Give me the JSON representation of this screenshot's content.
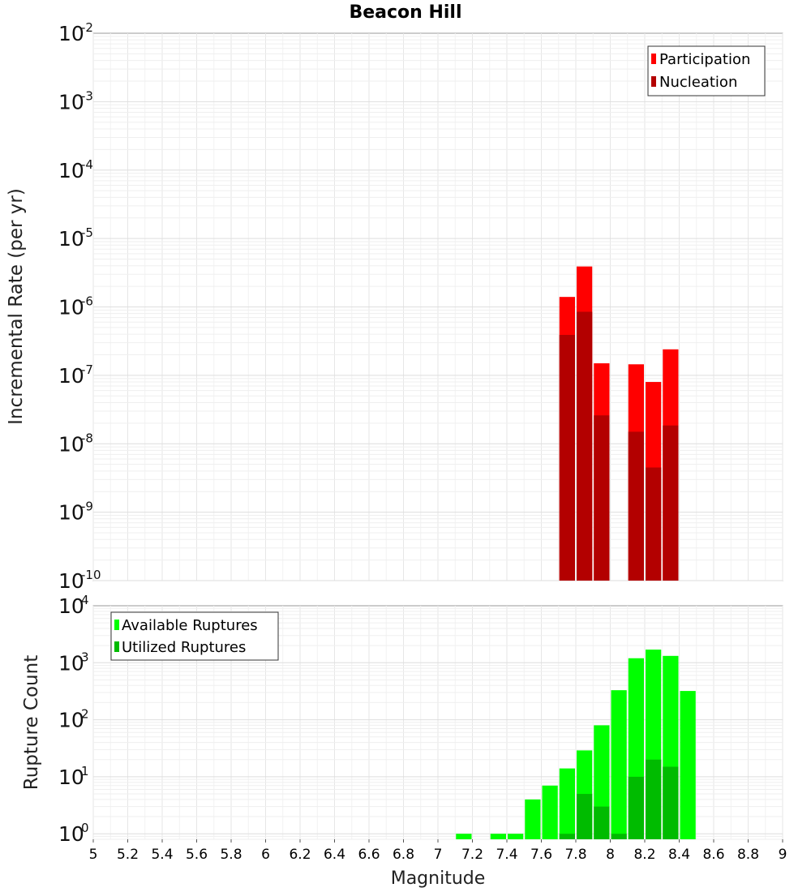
{
  "chart_data": [
    {
      "type": "bar",
      "title": "Beacon Hill",
      "xlabel": "",
      "ylabel": "Incremental Rate (per yr)",
      "y_scale": "log",
      "ylim": [
        1e-10,
        0.01
      ],
      "xlim": [
        5,
        9
      ],
      "bar_width": 0.1,
      "y_ticks": [
        {
          "base": "10",
          "exp": "-10",
          "value": 1e-10
        },
        {
          "base": "10",
          "exp": "-9",
          "value": 1e-09
        },
        {
          "base": "10",
          "exp": "-8",
          "value": 1e-08
        },
        {
          "base": "10",
          "exp": "-7",
          "value": 1e-07
        },
        {
          "base": "10",
          "exp": "-6",
          "value": 1e-06
        },
        {
          "base": "10",
          "exp": "-5",
          "value": 1e-05
        },
        {
          "base": "10",
          "exp": "-4",
          "value": 0.0001
        },
        {
          "base": "10",
          "exp": "-3",
          "value": 0.001
        },
        {
          "base": "10",
          "exp": "-2",
          "value": 0.01
        }
      ],
      "grid": true,
      "legend_position": "top-right",
      "series": [
        {
          "name": "Participation",
          "color": "#ff0000",
          "x": [
            7.75,
            7.85,
            7.95,
            8.15,
            8.25,
            8.35
          ],
          "values": [
            1.4e-06,
            3.9e-06,
            1.5e-07,
            1.45e-07,
            8e-08,
            2.4e-07
          ]
        },
        {
          "name": "Nucleation",
          "color": "#b30000",
          "x": [
            7.75,
            7.85,
            7.95,
            8.15,
            8.25,
            8.35
          ],
          "values": [
            3.9e-07,
            8.5e-07,
            2.6e-08,
            1.5e-08,
            4.5e-09,
            1.85e-08
          ]
        }
      ]
    },
    {
      "type": "bar",
      "title": "",
      "xlabel": "Magnitude",
      "ylabel": "Rupture Count",
      "y_scale": "log",
      "ylim": [
        0.8,
        10000
      ],
      "xlim": [
        5,
        9
      ],
      "bar_width": 0.1,
      "x_ticks": [
        "5",
        "5.2",
        "5.4",
        "5.6",
        "5.8",
        "6",
        "6.2",
        "6.4",
        "6.6",
        "6.8",
        "7",
        "7.2",
        "7.4",
        "7.6",
        "7.8",
        "8",
        "8.2",
        "8.4",
        "8.6",
        "8.8",
        "9"
      ],
      "y_ticks": [
        {
          "base": "10",
          "exp": "0",
          "value": 1
        },
        {
          "base": "10",
          "exp": "1",
          "value": 10
        },
        {
          "base": "10",
          "exp": "2",
          "value": 100
        },
        {
          "base": "10",
          "exp": "3",
          "value": 1000
        },
        {
          "base": "10",
          "exp": "4",
          "value": 10000
        }
      ],
      "grid": true,
      "legend_position": "top-left",
      "series": [
        {
          "name": "Available Ruptures",
          "color": "#00ff00",
          "x": [
            7.15,
            7.35,
            7.45,
            7.55,
            7.65,
            7.75,
            7.85,
            7.95,
            8.05,
            8.15,
            8.25,
            8.35,
            8.45
          ],
          "values": [
            1,
            1,
            1,
            4,
            7,
            14,
            29,
            80,
            330,
            1200,
            1700,
            1320,
            320
          ]
        },
        {
          "name": "Utilized Ruptures",
          "color": "#00bb00",
          "x": [
            7.75,
            7.85,
            7.95,
            8.05,
            8.15,
            8.25,
            8.35
          ],
          "values": [
            1,
            5,
            3,
            1,
            10,
            20,
            15
          ]
        }
      ]
    }
  ]
}
